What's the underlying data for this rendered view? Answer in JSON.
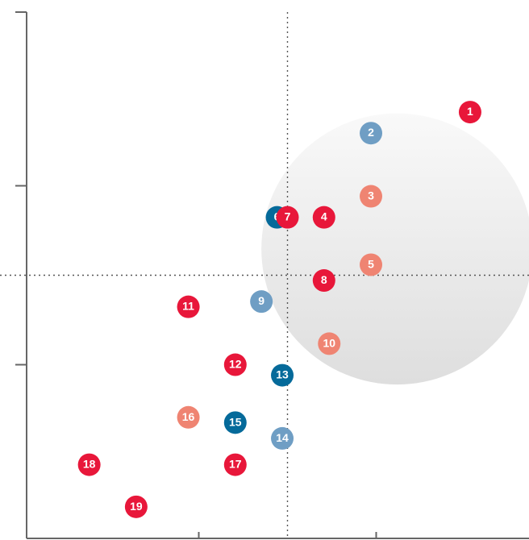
{
  "chart_data": {
    "type": "scatter",
    "title": "",
    "xlabel": "",
    "ylabel": "",
    "grid": false,
    "xlim": [
      0,
      10
    ],
    "ylim": [
      0,
      10
    ],
    "x_ticks": [
      0,
      3.3,
      6.7
    ],
    "y_ticks": [
      3.3,
      6.7
    ],
    "reference_lines": {
      "x": 5,
      "y": 5
    },
    "highlight_circle": {
      "cx": 7.1,
      "cy": 5.5,
      "r": 2.6,
      "fill_top": "#f9f9f9",
      "fill_bottom": "#dedede"
    },
    "colors": {
      "red": "#e8173a",
      "salmon": "#ef8472",
      "steel_blue": "#6f9ec4",
      "dark_blue": "#056a9a"
    },
    "points": [
      {
        "label": "1",
        "x": 8.5,
        "y": 8.1,
        "color": "red"
      },
      {
        "label": "2",
        "x": 6.6,
        "y": 7.7,
        "color": "steel_blue"
      },
      {
        "label": "3",
        "x": 6.6,
        "y": 6.5,
        "color": "salmon"
      },
      {
        "label": "4",
        "x": 5.7,
        "y": 6.1,
        "color": "red"
      },
      {
        "label": "5",
        "x": 6.6,
        "y": 5.2,
        "color": "salmon"
      },
      {
        "label": "6",
        "x": 4.8,
        "y": 6.1,
        "color": "dark_blue"
      },
      {
        "label": "7",
        "x": 5.0,
        "y": 6.1,
        "color": "red"
      },
      {
        "label": "8",
        "x": 5.7,
        "y": 4.9,
        "color": "red"
      },
      {
        "label": "9",
        "x": 4.5,
        "y": 4.5,
        "color": "steel_blue"
      },
      {
        "label": "10",
        "x": 5.8,
        "y": 3.7,
        "color": "salmon"
      },
      {
        "label": "11",
        "x": 3.1,
        "y": 4.4,
        "color": "red"
      },
      {
        "label": "12",
        "x": 4.0,
        "y": 3.3,
        "color": "red"
      },
      {
        "label": "13",
        "x": 4.9,
        "y": 3.1,
        "color": "dark_blue"
      },
      {
        "label": "14",
        "x": 4.9,
        "y": 1.9,
        "color": "steel_blue"
      },
      {
        "label": "15",
        "x": 4.0,
        "y": 2.2,
        "color": "dark_blue"
      },
      {
        "label": "16",
        "x": 3.1,
        "y": 2.3,
        "color": "salmon"
      },
      {
        "label": "17",
        "x": 4.0,
        "y": 1.4,
        "color": "red"
      },
      {
        "label": "18",
        "x": 1.2,
        "y": 1.4,
        "color": "red"
      },
      {
        "label": "19",
        "x": 2.1,
        "y": 0.6,
        "color": "red"
      }
    ]
  }
}
